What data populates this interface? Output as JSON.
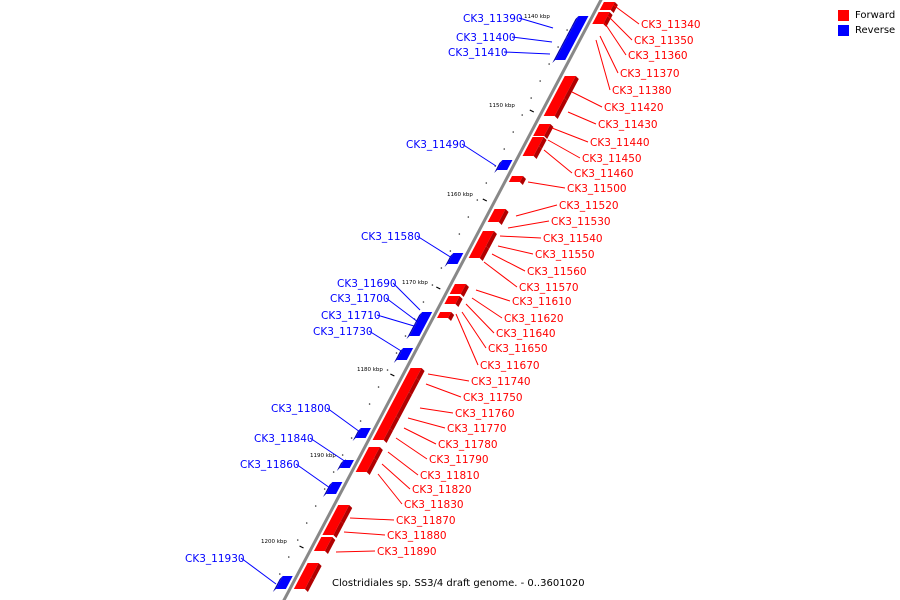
{
  "title": "Clostridiales sp. SS3/4 draft genome. - 0..3601020",
  "legend": [
    {
      "label": "Forward",
      "color": "#ff0000"
    },
    {
      "label": "Reverse",
      "color": "#0000ff"
    }
  ],
  "colors": {
    "forward": "#ff0000",
    "reverse": "#0000ff",
    "axis": "#888888"
  },
  "ticks": [
    "1140 kbp",
    "1150 kbp",
    "1160 kbp",
    "1170 kbp",
    "1180 kbp",
    "1190 kbp",
    "1200 kbp"
  ],
  "forward_genes": [
    "CK3_11340",
    "CK3_11350",
    "CK3_11360",
    "CK3_11370",
    "CK3_11380",
    "CK3_11420",
    "CK3_11430",
    "CK3_11440",
    "CK3_11450",
    "CK3_11460",
    "CK3_11500",
    "CK3_11520",
    "CK3_11530",
    "CK3_11540",
    "CK3_11550",
    "CK3_11560",
    "CK3_11570",
    "CK3_11610",
    "CK3_11620",
    "CK3_11640",
    "CK3_11650",
    "CK3_11670",
    "CK3_11740",
    "CK3_11750",
    "CK3_11760",
    "CK3_11770",
    "CK3_11780",
    "CK3_11790",
    "CK3_11810",
    "CK3_11820",
    "CK3_11830",
    "CK3_11870",
    "CK3_11880",
    "CK3_11890"
  ],
  "reverse_genes": [
    "CK3_11390",
    "CK3_11400",
    "CK3_11410",
    "CK3_11490",
    "CK3_11580",
    "CK3_11690",
    "CK3_11700",
    "CK3_11710",
    "CK3_11730",
    "CK3_11800",
    "CK3_11840",
    "CK3_11860",
    "CK3_11930"
  ]
}
